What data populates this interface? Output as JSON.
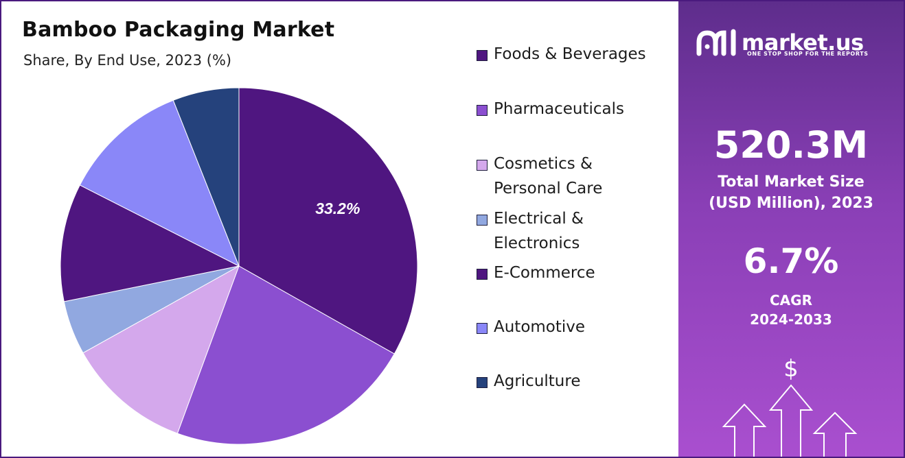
{
  "header": {
    "title": "Bamboo Packaging Market",
    "subtitle": "Share, By End Use, 2023 (%)"
  },
  "chart_data": {
    "type": "pie",
    "title": "Bamboo Packaging Market",
    "subtitle": "Share, By End Use, 2023 (%)",
    "unit": "%",
    "legend_position": "right",
    "slices": [
      {
        "name": "Foods & Beverages",
        "value": 33.2,
        "color": "#4f1680",
        "label": "33.2%"
      },
      {
        "name": "Pharmaceuticals",
        "value": 22.4,
        "color": "#8b4fd0",
        "label": ""
      },
      {
        "name": "Cosmetics & Personal Care",
        "value": 11.3,
        "color": "#d4a8ec",
        "label": ""
      },
      {
        "name": "Electrical & Electronics",
        "value": 4.9,
        "color": "#91a8e0",
        "label": ""
      },
      {
        "name": "E-Commerce",
        "value": 10.7,
        "color": "#4f1680",
        "label": ""
      },
      {
        "name": "Automotive",
        "value": 11.5,
        "color": "#8a87f8",
        "label": ""
      },
      {
        "name": "Agriculture",
        "value": 6.0,
        "color": "#25427c",
        "label": ""
      }
    ]
  },
  "legend": {
    "items": [
      {
        "text": "Foods & Beverages",
        "lines": [
          "Foods & Beverages"
        ],
        "color": "#4f1680"
      },
      {
        "text": "Pharmaceuticals",
        "lines": [
          "Pharmaceuticals"
        ],
        "color": "#8b4fd0"
      },
      {
        "text": "Cosmetics & Personal Care",
        "lines": [
          "Cosmetics &",
          "Personal Care"
        ],
        "color": "#d4a8ec"
      },
      {
        "text": "Electrical & Electronics",
        "lines": [
          "Electrical &",
          "Electronics"
        ],
        "color": "#91a8e0"
      },
      {
        "text": "E-Commerce",
        "lines": [
          "E-Commerce"
        ],
        "color": "#4f1680"
      },
      {
        "text": "Automotive",
        "lines": [
          "Automotive"
        ],
        "color": "#8a87f8"
      },
      {
        "text": "Agriculture",
        "lines": [
          "Agriculture"
        ],
        "color": "#25427c"
      }
    ]
  },
  "panel": {
    "brand_name": "market.us",
    "brand_tagline": "ONE STOP SHOP FOR THE REPORTS",
    "market_size_value": "520.3M",
    "market_size_label_1": "Total Market Size",
    "market_size_label_2": "(USD Million), 2023",
    "cagr_value": "6.7%",
    "cagr_label_1": "CAGR",
    "cagr_label_2": "2024-2033",
    "dollar_symbol": "$",
    "logo_icon": "market-us-logo-icon",
    "growth_icon": "growth-arrows-icon"
  },
  "colors": {
    "frame": "#4a1a7e",
    "panel_top": "#5e2d8c",
    "panel_bottom": "#a94fcf"
  }
}
